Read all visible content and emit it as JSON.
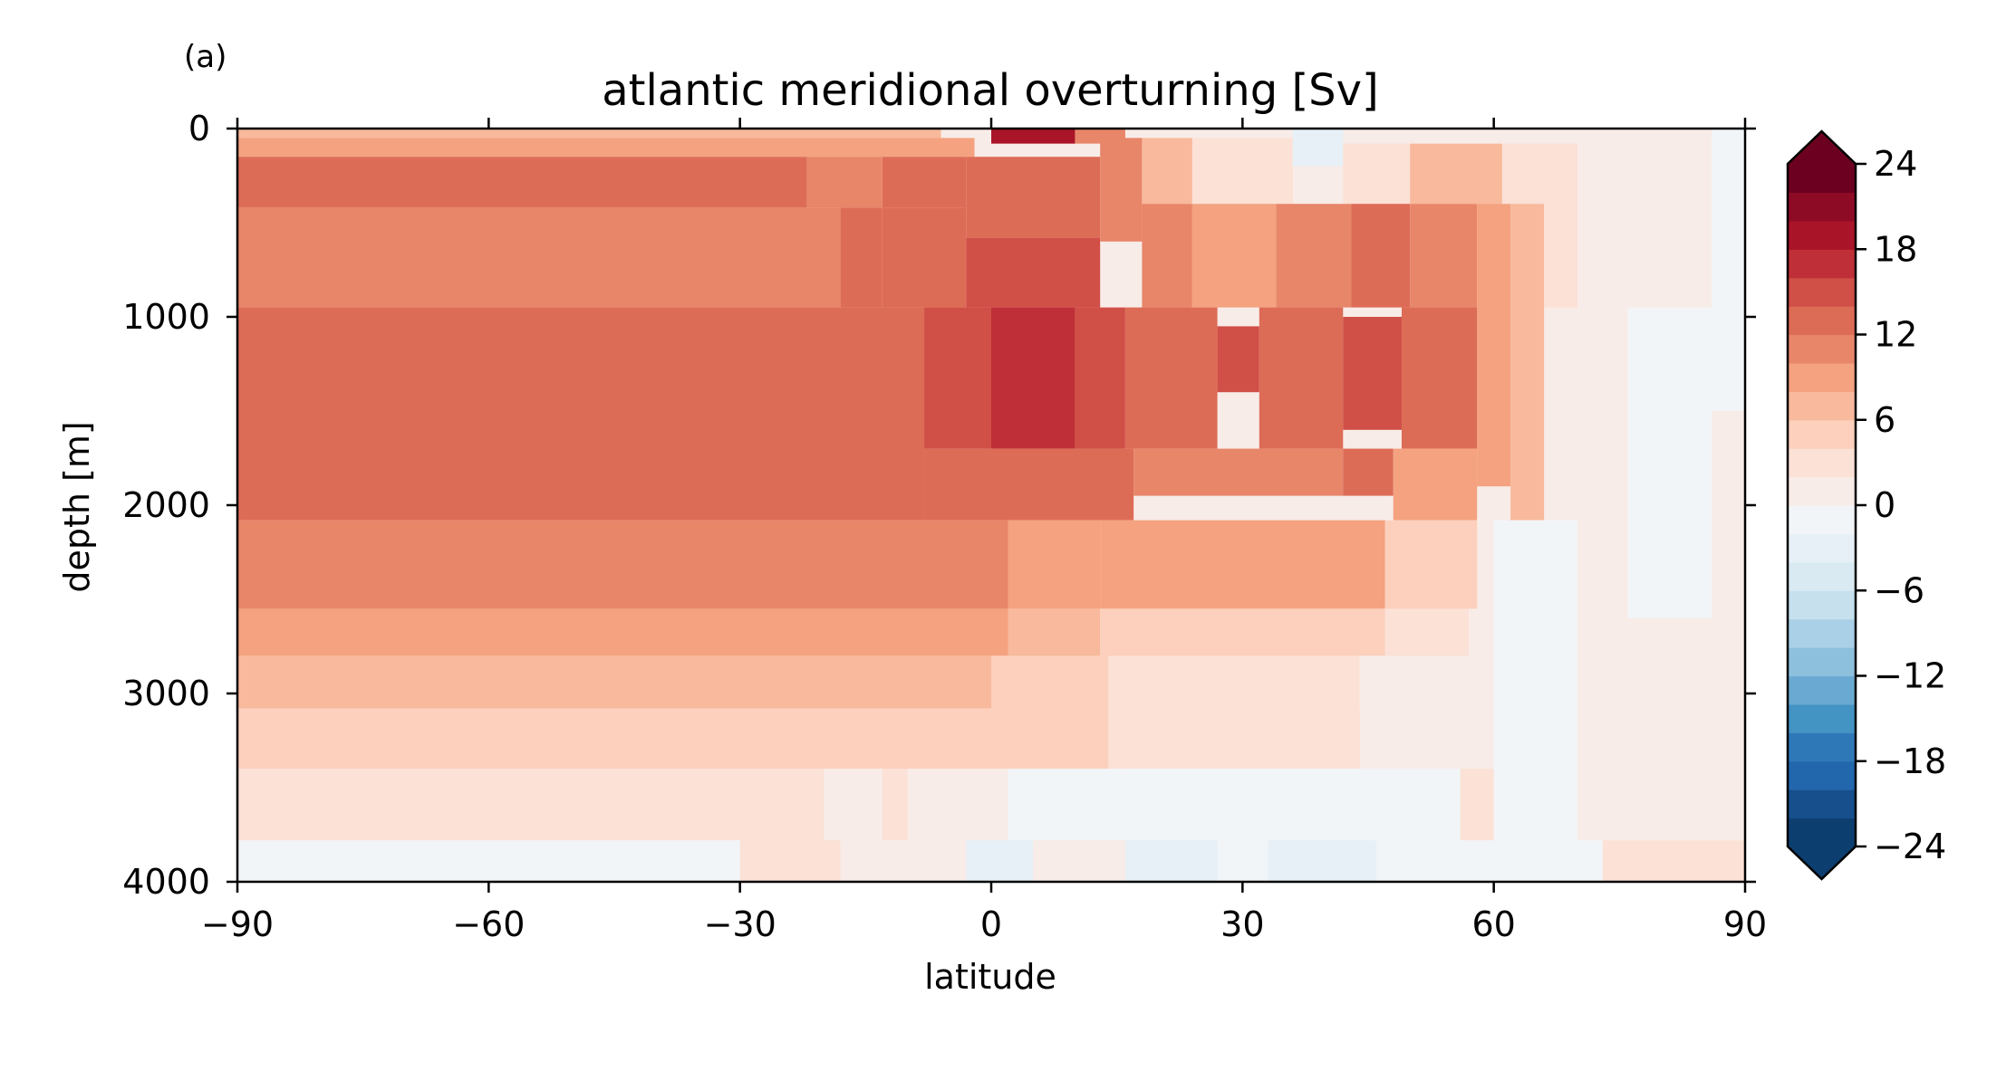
{
  "panel_label": "(a)",
  "chart_data": {
    "type": "heatmap",
    "title": "atlantic meridional overturning [Sv]",
    "xlabel": "latitude",
    "ylabel": "depth [m]",
    "xlim": [
      -90,
      90
    ],
    "ylim": [
      4000,
      0
    ],
    "y_inverted": true,
    "xticks": [
      -90,
      -60,
      -30,
      0,
      30,
      60,
      90
    ],
    "xtick_labels": [
      "−90",
      "−60",
      "−30",
      "0",
      "30",
      "60",
      "90"
    ],
    "yticks": [
      0,
      1000,
      2000,
      3000,
      4000
    ],
    "ytick_labels": [
      "0",
      "1000",
      "2000",
      "3000",
      "4000"
    ],
    "colormap": "RdBu_r",
    "color_levels": [
      -24,
      -22,
      -20,
      -18,
      -16,
      -14,
      -12,
      -10,
      -8,
      -6,
      -4,
      -2,
      0,
      2,
      4,
      6,
      8,
      10,
      12,
      14,
      16,
      18,
      20,
      22,
      24
    ],
    "level_colors": [
      "#0c3e70",
      "#164f8c",
      "#2266ac",
      "#2f78b8",
      "#4393c3",
      "#6aa9d1",
      "#8dc0dd",
      "#a9d0e6",
      "#c6e0ee",
      "#d9eaf3",
      "#e6f0f6",
      "#f2f5f8",
      "#f8ece8",
      "#fbe1d6",
      "#fcd0bc",
      "#f8b99c",
      "#f4a27f",
      "#e8866a",
      "#dd6c56",
      "#d04f47",
      "#bf2f37",
      "#aa1429",
      "#8e0b26",
      "#6c0020"
    ],
    "extend": "both",
    "colorbar_ticks": [
      24,
      18,
      12,
      6,
      0,
      -6,
      -12,
      -18,
      -24
    ],
    "colorbar_tick_labels": [
      "24",
      "18",
      "12",
      "6",
      "0",
      "−6",
      "−12",
      "−18",
      "−24"
    ],
    "cells": [
      {
        "lat": [
          -90,
          -6
        ],
        "depth": [
          0,
          50
        ],
        "value": 7
      },
      {
        "lat": [
          -90,
          -2
        ],
        "depth": [
          50,
          150
        ],
        "value": 9
      },
      {
        "lat": [
          -90,
          -22
        ],
        "depth": [
          150,
          420
        ],
        "value": 13
      },
      {
        "lat": [
          -22,
          -13
        ],
        "depth": [
          150,
          420
        ],
        "value": 11
      },
      {
        "lat": [
          -13,
          -3
        ],
        "depth": [
          150,
          420
        ],
        "value": 13
      },
      {
        "lat": [
          -90,
          -18
        ],
        "depth": [
          420,
          950
        ],
        "value": 11
      },
      {
        "lat": [
          -18,
          -13
        ],
        "depth": [
          420,
          950
        ],
        "value": 12
      },
      {
        "lat": [
          -13,
          -3
        ],
        "depth": [
          420,
          950
        ],
        "value": 13
      },
      {
        "lat": [
          -90,
          -8
        ],
        "depth": [
          950,
          2080
        ],
        "value": 13
      },
      {
        "lat": [
          -8,
          0
        ],
        "depth": [
          950,
          1700
        ],
        "value": 15
      },
      {
        "lat": [
          0,
          10
        ],
        "depth": [
          0,
          80
        ],
        "value": 18
      },
      {
        "lat": [
          10,
          16
        ],
        "depth": [
          0,
          80
        ],
        "value": 11
      },
      {
        "lat": [
          -3,
          13
        ],
        "depth": [
          150,
          580
        ],
        "value": 13
      },
      {
        "lat": [
          -3,
          13
        ],
        "depth": [
          580,
          950
        ],
        "value": 15
      },
      {
        "lat": [
          0,
          10
        ],
        "depth": [
          950,
          1700
        ],
        "value": 16
      },
      {
        "lat": [
          -8,
          17
        ],
        "depth": [
          1700,
          2080
        ],
        "value": 13
      },
      {
        "lat": [
          10,
          16
        ],
        "depth": [
          950,
          1700
        ],
        "value": 14
      },
      {
        "lat": [
          13,
          18
        ],
        "depth": [
          50,
          600
        ],
        "value": 11
      },
      {
        "lat": [
          18,
          24
        ],
        "depth": [
          50,
          400
        ],
        "value": 7
      },
      {
        "lat": [
          24,
          36
        ],
        "depth": [
          50,
          400
        ],
        "value": 2
      },
      {
        "lat": [
          36,
          42
        ],
        "depth": [
          0,
          200
        ],
        "value": -3
      },
      {
        "lat": [
          42,
          50
        ],
        "depth": [
          80,
          400
        ],
        "value": 3
      },
      {
        "lat": [
          50,
          61
        ],
        "depth": [
          80,
          400
        ],
        "value": 6
      },
      {
        "lat": [
          61,
          66
        ],
        "depth": [
          80,
          400
        ],
        "value": 3
      },
      {
        "lat": [
          18,
          24
        ],
        "depth": [
          400,
          950
        ],
        "value": 11
      },
      {
        "lat": [
          24,
          34
        ],
        "depth": [
          400,
          950
        ],
        "value": 9
      },
      {
        "lat": [
          34,
          43
        ],
        "depth": [
          400,
          950
        ],
        "value": 11
      },
      {
        "lat": [
          43,
          50
        ],
        "depth": [
          400,
          950
        ],
        "value": 12
      },
      {
        "lat": [
          50,
          58
        ],
        "depth": [
          400,
          950
        ],
        "value": 11
      },
      {
        "lat": [
          58,
          62
        ],
        "depth": [
          400,
          1900
        ],
        "value": 9
      },
      {
        "lat": [
          62,
          66
        ],
        "depth": [
          400,
          2080
        ],
        "value": 6
      },
      {
        "lat": [
          66,
          70
        ],
        "depth": [
          80,
          950
        ],
        "value": 3
      },
      {
        "lat": [
          16,
          27
        ],
        "depth": [
          950,
          1700
        ],
        "value": 13
      },
      {
        "lat": [
          27,
          32
        ],
        "depth": [
          1050,
          1400
        ],
        "value": 15
      },
      {
        "lat": [
          32,
          42
        ],
        "depth": [
          950,
          1700
        ],
        "value": 13
      },
      {
        "lat": [
          42,
          49
        ],
        "depth": [
          1000,
          1600
        ],
        "value": 15
      },
      {
        "lat": [
          49,
          58
        ],
        "depth": [
          950,
          1700
        ],
        "value": 12
      },
      {
        "lat": [
          17,
          42
        ],
        "depth": [
          1700,
          1950
        ],
        "value": 11
      },
      {
        "lat": [
          42,
          48
        ],
        "depth": [
          1700,
          1950
        ],
        "value": 13
      },
      {
        "lat": [
          48,
          58
        ],
        "depth": [
          1700,
          2080
        ],
        "value": 9
      },
      {
        "lat": [
          -90,
          2
        ],
        "depth": [
          2080,
          2550
        ],
        "value": 11
      },
      {
        "lat": [
          2,
          13
        ],
        "depth": [
          2080,
          2550
        ],
        "value": 9
      },
      {
        "lat": [
          13,
          47
        ],
        "depth": [
          2080,
          2550
        ],
        "value": 8
      },
      {
        "lat": [
          47,
          58
        ],
        "depth": [
          2080,
          2550
        ],
        "value": 5
      },
      {
        "lat": [
          -90,
          2
        ],
        "depth": [
          2550,
          2800
        ],
        "value": 9
      },
      {
        "lat": [
          2,
          13
        ],
        "depth": [
          2550,
          2800
        ],
        "value": 7
      },
      {
        "lat": [
          13,
          47
        ],
        "depth": [
          2550,
          2800
        ],
        "value": 5
      },
      {
        "lat": [
          47,
          57
        ],
        "depth": [
          2550,
          2800
        ],
        "value": 3
      },
      {
        "lat": [
          -90,
          0
        ],
        "depth": [
          2800,
          3080
        ],
        "value": 7
      },
      {
        "lat": [
          0,
          14
        ],
        "depth": [
          2800,
          3080
        ],
        "value": 5
      },
      {
        "lat": [
          14,
          44
        ],
        "depth": [
          2800,
          3080
        ],
        "value": 3
      },
      {
        "lat": [
          44,
          60
        ],
        "depth": [
          2800,
          3080
        ],
        "value": 1
      },
      {
        "lat": [
          -90,
          -6
        ],
        "depth": [
          3080,
          3400
        ],
        "value": 5
      },
      {
        "lat": [
          -6,
          14
        ],
        "depth": [
          3080,
          3400
        ],
        "value": 5
      },
      {
        "lat": [
          14,
          44
        ],
        "depth": [
          3080,
          3400
        ],
        "value": 2
      },
      {
        "lat": [
          -90,
          -20
        ],
        "depth": [
          3400,
          3780
        ],
        "value": 3
      },
      {
        "lat": [
          -20,
          -13
        ],
        "depth": [
          3400,
          3780
        ],
        "value": 1
      },
      {
        "lat": [
          -13,
          -10
        ],
        "depth": [
          3400,
          3780
        ],
        "value": 3
      },
      {
        "lat": [
          -10,
          2
        ],
        "depth": [
          3400,
          3780
        ],
        "value": 1
      },
      {
        "lat": [
          2,
          16
        ],
        "depth": [
          3400,
          3780
        ],
        "value": -1
      },
      {
        "lat": [
          16,
          56
        ],
        "depth": [
          3400,
          3780
        ],
        "value": -1
      },
      {
        "lat": [
          56,
          60
        ],
        "depth": [
          3400,
          3780
        ],
        "value": 3
      },
      {
        "lat": [
          -90,
          -30
        ],
        "depth": [
          3780,
          4000
        ],
        "value": -1
      },
      {
        "lat": [
          -30,
          -18
        ],
        "depth": [
          3780,
          4000
        ],
        "value": 2
      },
      {
        "lat": [
          -18,
          16
        ],
        "depth": [
          3780,
          4000
        ],
        "value": 1
      },
      {
        "lat": [
          -3,
          5
        ],
        "depth": [
          3780,
          4000
        ],
        "value": -3
      },
      {
        "lat": [
          16,
          27
        ],
        "depth": [
          3780,
          4000
        ],
        "value": -3
      },
      {
        "lat": [
          27,
          33
        ],
        "depth": [
          3780,
          4000
        ],
        "value": -1
      },
      {
        "lat": [
          33,
          46
        ],
        "depth": [
          3780,
          4000
        ],
        "value": -3
      },
      {
        "lat": [
          46,
          73
        ],
        "depth": [
          3780,
          4000
        ],
        "value": -1
      },
      {
        "lat": [
          73,
          90
        ],
        "depth": [
          3780,
          4000
        ],
        "value": 2
      },
      {
        "lat": [
          60,
          70
        ],
        "depth": [
          2080,
          3780
        ],
        "value": -1
      },
      {
        "lat": [
          70,
          90
        ],
        "depth": [
          0,
          3780
        ],
        "value": 1
      },
      {
        "lat": [
          76,
          86
        ],
        "depth": [
          950,
          2600
        ],
        "value": -1
      },
      {
        "lat": [
          86,
          90
        ],
        "depth": [
          0,
          1500
        ],
        "value": -1
      }
    ]
  }
}
